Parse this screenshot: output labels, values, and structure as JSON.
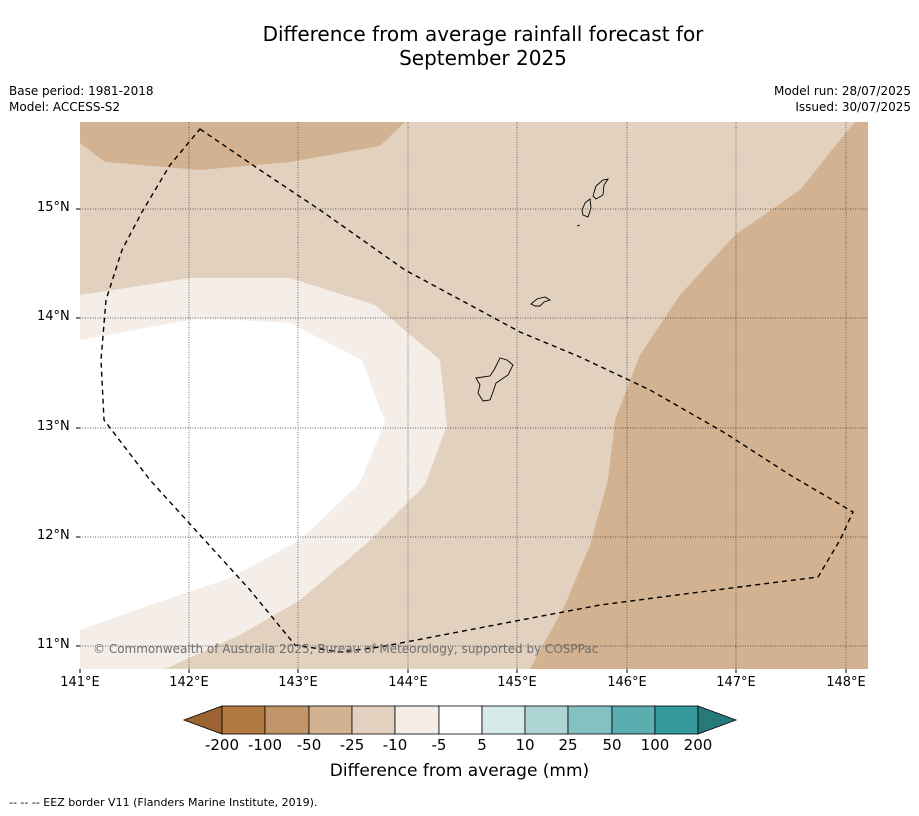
{
  "title_line1": "Difference from average rainfall forecast for",
  "title_line2": "September 2025",
  "meta_left": {
    "base_period": "Base period: 1981-2018",
    "model": "Model: ACCESS-S2"
  },
  "meta_right": {
    "model_run": "Model run: 28/07/2025",
    "issued": "Issued: 30/07/2025"
  },
  "map": {
    "lat_labels": [
      "15°N",
      "14°N",
      "13°N",
      "12°N",
      "11°N"
    ],
    "lon_labels": [
      "141°E",
      "142°E",
      "143°E",
      "144°E",
      "145°E",
      "146°E",
      "147°E",
      "148°E"
    ],
    "copyright": "© Commonwealth of Australia 2025, Bureau of Meteorology, supported by COSPPac"
  },
  "colorbar": {
    "ticks": [
      "-200",
      "-100",
      "-50",
      "-25",
      "-10",
      "-5",
      "5",
      "10",
      "25",
      "50",
      "100",
      "200"
    ],
    "colors": [
      "#9b6232",
      "#b0793f",
      "#c29469",
      "#d2b290",
      "#e3d1bf",
      "#f4ede8",
      "#ffffff",
      "#d6eaea",
      "#acd5d4",
      "#84c1c2",
      "#5badaf",
      "#349a9c",
      "#267a7a"
    ],
    "title": "Difference from average (mm)"
  },
  "footer": "--  --  -- EEZ border V11 (Flanders Marine Institute, 2019)."
}
